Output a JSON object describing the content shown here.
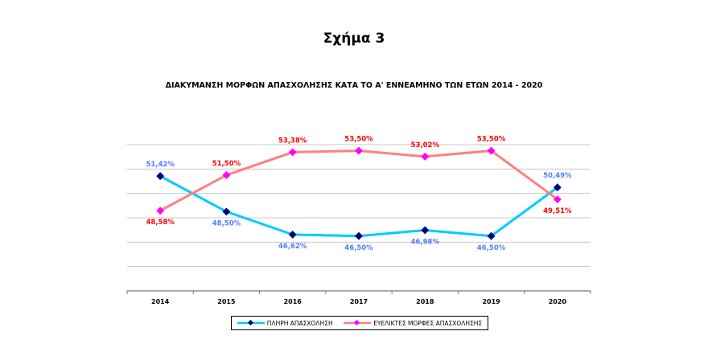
{
  "figure_label": "Σχήμα 3",
  "chart_data": {
    "type": "line",
    "title": "ΔΙΑΚΥΜΑΝΣΗ ΜΟΡΦΩΝ ΑΠΑΣΧΟΛΗΣΗΣ ΚΑΤΑ ΤΟ Α' ΕΝΝΕΑΜΗΝΟ ΤΩΝ ΕΤΩΝ 2014 - 2020",
    "categories": [
      "2014",
      "2015",
      "2016",
      "2017",
      "2018",
      "2019",
      "2020"
    ],
    "ylim": [
      42,
      54
    ],
    "grid": true,
    "legend": "bottom",
    "series": [
      {
        "name": "ΠΛΗΡΗ ΑΠΑΣΧΟΛΗΣΗ",
        "values": [
          51.42,
          48.5,
          46.62,
          46.5,
          46.98,
          46.5,
          50.49
        ],
        "labels": [
          "51,42%",
          "48,50%",
          "46,62%",
          "46,50%",
          "46,98%",
          "46,50%",
          "50,49%"
        ],
        "color": "#00CCFF",
        "marker_color": "#000080",
        "label_color": "#4F7BFF"
      },
      {
        "name": "ΕΥΕΛΙΚΤΕΣ ΜΟΡΦΕΣ ΑΠΑΣΧΟΛΗΣΗΣ",
        "values": [
          48.58,
          51.5,
          53.38,
          53.5,
          53.02,
          53.5,
          49.51
        ],
        "labels": [
          "48,58%",
          "51,50%",
          "53,38%",
          "53,50%",
          "53,02%",
          "53,50%",
          "49,51%"
        ],
        "color": "#FF8080",
        "marker_color": "#FF00FF",
        "label_color": "#FF0000"
      }
    ]
  }
}
